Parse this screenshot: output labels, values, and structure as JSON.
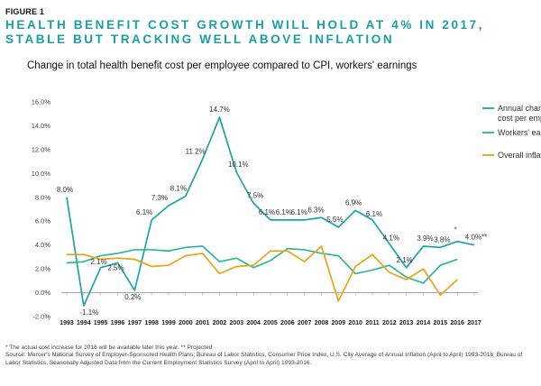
{
  "header": {
    "figure_label": "FIGURE 1",
    "headline": "HEALTH BENEFIT COST GROWTH WILL HOLD AT 4% IN 2017, STABLE BUT TRACKING WELL ABOVE INFLATION",
    "subtitle": "Change in total health benefit cost per employee compared to CPI, workers' earnings"
  },
  "footnote": {
    "line1": "* The actual cost increase for 2016 will be available later this year.   ** Projected",
    "line2": "Source: Mercer's National Survey of Employer-Sponsored Health Plans; Bureau of Labor Statistics, Consumer Price Index, U.S. City Average of Annual Inflation (April to April) 1993-2016; Bureau of Labor Statistics, Seasonally Adjusted Data from the Current Employment Statistics Survey (April to April) 1993-2016."
  },
  "colors": {
    "health": "#1aa3ab",
    "earnings": "#2fb59a",
    "inflation": "#e8a317",
    "axis": "#999999"
  },
  "chart_data": {
    "type": "line",
    "x": [
      "1993",
      "1994",
      "1995",
      "1996",
      "1997",
      "1998",
      "1999",
      "2000",
      "2001",
      "2002",
      "2003",
      "2004",
      "2005",
      "2006",
      "2007",
      "2008",
      "2009",
      "2010",
      "2011",
      "2012",
      "2013",
      "2014",
      "2015",
      "2016",
      "2017"
    ],
    "ylim": [
      -2.0,
      16.0
    ],
    "yticks": [
      -2.0,
      0.0,
      2.0,
      4.0,
      6.0,
      8.0,
      10.0,
      12.0,
      14.0,
      16.0
    ],
    "ytick_labels": [
      "-2.0%",
      "0.0%",
      "2.0%",
      "4.0%",
      "6.0%",
      "8.0%",
      "10.0%",
      "12.0%",
      "14.0%",
      "16.0%"
    ],
    "legend_position": "right",
    "grid": false,
    "series": [
      {
        "name": "Annual change in total health benefit cost per employee",
        "color": "#1aa3ab",
        "values": [
          8.0,
          -1.1,
          2.1,
          2.5,
          0.2,
          6.1,
          7.3,
          8.1,
          11.2,
          14.7,
          10.1,
          7.5,
          6.1,
          6.1,
          6.1,
          6.3,
          5.5,
          6.9,
          6.1,
          4.1,
          2.1,
          3.9,
          3.8,
          4.3,
          4.0
        ],
        "labels": [
          "8.0%",
          "-1.1%",
          "2.1%",
          "2.5%",
          "0.2%",
          "6.1%",
          "7.3%",
          "8.1%",
          "11.2%",
          "14.7%",
          "10.1%",
          "7.5%",
          "6.1%",
          "6.1%",
          "6.1%",
          "6.3%",
          "5.5%",
          "6.9%",
          "6.1%",
          "4.1%",
          "2.1%",
          "3.9%",
          "3.8%",
          "*",
          "4.0%**"
        ]
      },
      {
        "name": "Workers' earnings",
        "color": "#2fb59a",
        "values": [
          2.5,
          2.6,
          3.1,
          3.3,
          3.6,
          3.6,
          3.5,
          3.8,
          3.9,
          2.6,
          2.9,
          2.1,
          2.7,
          3.7,
          3.6,
          3.3,
          3.1,
          1.6,
          1.9,
          2.3,
          1.3,
          0.8,
          2.3,
          2.8,
          null
        ],
        "labels": []
      },
      {
        "name": "Overall inflation",
        "color": "#e8a317",
        "values": [
          3.2,
          3.2,
          2.8,
          2.9,
          2.8,
          2.2,
          2.3,
          3.1,
          3.3,
          1.6,
          2.2,
          2.3,
          3.5,
          3.5,
          2.6,
          3.9,
          -0.7,
          2.2,
          3.2,
          1.7,
          1.1,
          2.0,
          -0.2,
          1.1,
          null
        ],
        "labels": []
      }
    ]
  }
}
